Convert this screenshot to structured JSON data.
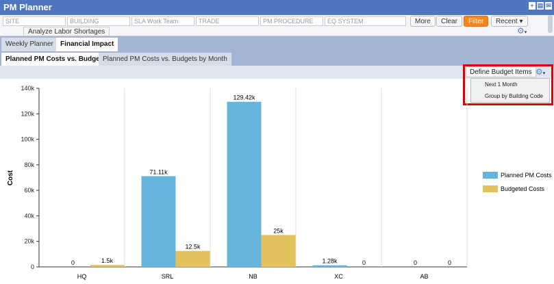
{
  "title": "PM Planner",
  "filters": {
    "site": "SITE",
    "building": "BUILDING",
    "sla_work_team": "SLA  Work  Team",
    "trade": "TRADE",
    "pm_procedure": "PM PROCEDURE",
    "eq_system": "EQ SYSTEM"
  },
  "buttons": {
    "more": "More",
    "clear": "Clear",
    "filter": "Filter",
    "recent": "Recent",
    "analyze": "Analyze Labor Shortages"
  },
  "tabs": [
    "Weekly Planner",
    "Financial Impact"
  ],
  "subtabs": [
    "Planned PM Costs vs. Budgets",
    "Planned PM Costs vs. Budgets by Month"
  ],
  "toolbar": {
    "define": "Define Budget Items",
    "menu": [
      "Next 1 Month",
      "Group by Building Code"
    ]
  },
  "colors": {
    "planned": "#66b5dd",
    "budget": "#e3c15d",
    "filter": "#f7861c",
    "title": "#4f77c0"
  },
  "chart_data": {
    "type": "bar",
    "ylabel": "Cost",
    "ylim": [
      0,
      140000
    ],
    "yticks": [
      "0",
      "20k",
      "40k",
      "60k",
      "80k",
      "100k",
      "120k",
      "140k"
    ],
    "categories": [
      "HQ",
      "SRL",
      "NB",
      "XC",
      "AB"
    ],
    "series": [
      {
        "name": "Planned PM Costs",
        "values": [
          0,
          71110,
          129420,
          1280,
          0
        ],
        "labels": [
          "0",
          "71.11k",
          "129.42k",
          "1.28k",
          "0"
        ]
      },
      {
        "name": "Budgeted Costs",
        "values": [
          1500,
          12500,
          25000,
          0,
          0
        ],
        "labels": [
          "1.5k",
          "12.5k",
          "25k",
          "0",
          "0"
        ]
      }
    ],
    "legend": "right",
    "grid": true
  }
}
